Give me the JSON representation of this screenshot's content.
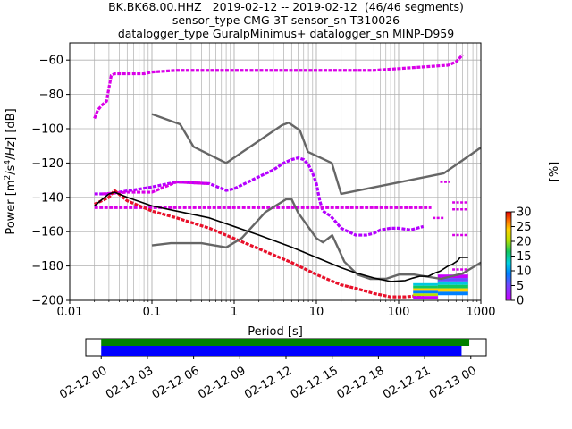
{
  "title_lines": [
    "BK.BK68.00.HHZ   2019-02-12 -- 2019-02-12  (46/46 segments)",
    "sensor_type CMG-3T sensor_sn T310026",
    "datalogger_type GuralpMinimus+ datalogger_sn MINP-D959"
  ],
  "colorbar": {
    "label": "[%]",
    "ticks": [
      "0",
      "5",
      "10",
      "15",
      "20",
      "25",
      "30"
    ],
    "range": [
      0,
      30
    ],
    "colormap": "pqlx"
  },
  "chart_data": [
    {
      "type": "heatmap",
      "name": "ppsd",
      "xlabel": "Period [s]",
      "ylabel": "Power [m²/s⁴/Hz] [dB]",
      "xscale": "log",
      "xlim": [
        0.01,
        1000
      ],
      "ylim": [
        -200,
        -50
      ],
      "xticks": [
        0.01,
        0.1,
        1,
        10,
        100,
        1000
      ],
      "xtick_labels": [
        "0.01",
        "0.1",
        "1",
        "10",
        "100",
        "1000"
      ],
      "yticks": [
        -200,
        -180,
        -160,
        -140,
        -120,
        -100,
        -80,
        -60
      ],
      "ytick_labels": [
        "−200",
        "−180",
        "−160",
        "−140",
        "−120",
        "−100",
        "−80",
        "−60"
      ],
      "grid": true,
      "models": {
        "high_noise": {
          "color": "#666666",
          "points": [
            [
              0.1,
              -91.5
            ],
            [
              0.22,
              -97.4
            ],
            [
              0.32,
              -110.5
            ],
            [
              0.8,
              -120
            ],
            [
              3.8,
              -98
            ],
            [
              4.6,
              -96.5
            ],
            [
              6.3,
              -101
            ],
            [
              7.9,
              -113.5
            ],
            [
              15.4,
              -120
            ],
            [
              20,
              -138
            ],
            [
              354.8,
              -126
            ],
            [
              1000,
              -111
            ]
          ]
        },
        "low_noise": {
          "color": "#666666",
          "points": [
            [
              0.1,
              -168
            ],
            [
              0.17,
              -166.7
            ],
            [
              0.4,
              -166.7
            ],
            [
              0.8,
              -169.2
            ],
            [
              1.24,
              -163.7
            ],
            [
              2.4,
              -148.6
            ],
            [
              4.3,
              -141.1
            ],
            [
              5,
              -141.1
            ],
            [
              6,
              -149
            ],
            [
              10,
              -163.8
            ],
            [
              12,
              -166.2
            ],
            [
              15.6,
              -162.1
            ],
            [
              21.9,
              -177.5
            ],
            [
              31.6,
              -185
            ],
            [
              45,
              -187.5
            ],
            [
              70,
              -187.5
            ],
            [
              101,
              -185
            ],
            [
              154,
              -185
            ],
            [
              328,
              -187.5
            ],
            [
              600,
              -184.4
            ],
            [
              1000,
              -178
            ]
          ]
        },
        "mean": {
          "color": "#000000",
          "points": [
            [
              0.02,
              -145
            ],
            [
              0.025,
              -141
            ],
            [
              0.03,
              -138
            ],
            [
              0.035,
              -137
            ],
            [
              0.05,
              -140
            ],
            [
              0.1,
              -145
            ],
            [
              0.2,
              -148
            ],
            [
              0.5,
              -152
            ],
            [
              1,
              -157
            ],
            [
              2,
              -162
            ],
            [
              5,
              -169
            ],
            [
              10,
              -175
            ],
            [
              20,
              -181
            ],
            [
              30,
              -184
            ],
            [
              50,
              -187
            ],
            [
              80,
              -189
            ],
            [
              120,
              -188.5
            ],
            [
              150,
              -187
            ],
            [
              180,
              -186
            ],
            [
              230,
              -186
            ],
            [
              280,
              -184
            ],
            [
              320,
              -183
            ],
            [
              400,
              -180
            ],
            [
              450,
              -179
            ],
            [
              520,
              -177
            ],
            [
              560,
              -175
            ],
            [
              700,
              -175
            ]
          ]
        }
      },
      "percentile_bands": [
        {
          "name": "upper_band",
          "color": "#d900e8",
          "points": [
            [
              0.02,
              -94
            ],
            [
              0.022,
              -89
            ],
            [
              0.025,
              -86
            ],
            [
              0.028,
              -84
            ],
            [
              0.032,
              -69
            ],
            [
              0.035,
              -68
            ],
            [
              0.05,
              -68
            ],
            [
              0.08,
              -68
            ],
            [
              0.1,
              -67
            ],
            [
              0.2,
              -66
            ],
            [
              1,
              -66
            ],
            [
              10,
              -66
            ],
            [
              50,
              -66
            ],
            [
              100,
              -65
            ],
            [
              200,
              -64
            ],
            [
              400,
              -63
            ],
            [
              500,
              -61
            ],
            [
              600,
              -57
            ]
          ]
        },
        {
          "name": "mid_upper_band",
          "color": "#b400ff",
          "points": [
            [
              0.02,
              -138
            ],
            [
              0.03,
              -138
            ],
            [
              0.04,
              -137
            ],
            [
              0.1,
              -134
            ],
            [
              0.2,
              -131
            ],
            [
              0.5,
              -132
            ],
            [
              0.8,
              -136
            ],
            [
              1,
              -135
            ],
            [
              2,
              -128
            ],
            [
              3,
              -124
            ],
            [
              4,
              -120
            ],
            [
              5,
              -118
            ],
            [
              6,
              -117
            ],
            [
              7,
              -118
            ],
            [
              8,
              -121
            ],
            [
              9,
              -126
            ],
            [
              10,
              -132
            ],
            [
              11,
              -142
            ],
            [
              12,
              -148
            ],
            [
              15,
              -151
            ],
            [
              20,
              -158
            ],
            [
              30,
              -162
            ],
            [
              40,
              -162
            ],
            [
              50,
              -161
            ],
            [
              60,
              -159
            ],
            [
              80,
              -158
            ],
            [
              100,
              -158
            ],
            [
              140,
              -159
            ],
            [
              200,
              -157
            ]
          ]
        },
        {
          "name": "flat_band",
          "color": "#d900e8",
          "points": [
            [
              0.02,
              -146
            ],
            [
              0.05,
              -146
            ],
            [
              0.1,
              -146
            ],
            [
              1,
              -146
            ],
            [
              10,
              -146
            ],
            [
              50,
              -146
            ],
            [
              100,
              -146
            ],
            [
              200,
              -146
            ],
            [
              250,
              -146
            ]
          ]
        },
        {
          "name": "upper_flat_band",
          "color": "#d900e8",
          "points": [
            [
              0.025,
              -138
            ],
            [
              0.05,
              -137
            ],
            [
              0.1,
              -137
            ],
            [
              0.2,
              -131
            ],
            [
              0.5,
              -132
            ]
          ]
        },
        {
          "name": "lower_band",
          "color": "#e8102a",
          "points": [
            [
              0.02,
              -144
            ],
            [
              0.03,
              -140
            ],
            [
              0.035,
              -136
            ],
            [
              0.05,
              -142
            ],
            [
              0.1,
              -148
            ],
            [
              0.2,
              -152
            ],
            [
              0.5,
              -158
            ],
            [
              1,
              -164
            ],
            [
              2,
              -170
            ],
            [
              5,
              -178
            ],
            [
              10,
              -185
            ],
            [
              20,
              -191
            ],
            [
              30,
              -193
            ],
            [
              50,
              -196
            ],
            [
              80,
              -198
            ],
            [
              120,
              -198
            ],
            [
              200,
              -197
            ]
          ]
        }
      ],
      "spectrum_patches": [
        {
          "x": [
            300,
            700
          ],
          "y": [
            -197,
            -185
          ]
        },
        {
          "x": [
            150,
            300
          ],
          "y": [
            -199,
            -190
          ]
        }
      ],
      "right_dashes": [
        {
          "x": [
            260,
            360
          ],
          "y": -152
        },
        {
          "x": [
            450,
            700
          ],
          "y": -147
        },
        {
          "x": [
            450,
            700
          ],
          "y": -143
        },
        {
          "x": [
            450,
            700
          ],
          "y": -162
        },
        {
          "x": [
            450,
            700
          ],
          "y": -182
        },
        {
          "x": [
            320,
            420
          ],
          "y": -131
        }
      ]
    },
    {
      "type": "bar",
      "name": "coverage",
      "xticks": [
        "02-12 00",
        "02-12 03",
        "02-12 06",
        "02-12 09",
        "02-12 12",
        "02-12 15",
        "02-12 18",
        "02-12 21",
        "02-13 00"
      ],
      "xlim_hours": [
        -1.0,
        25.0
      ],
      "series": [
        {
          "color": "#008000",
          "start_hour": 0.0,
          "end_hour": 23.9
        },
        {
          "color": "#0000ff",
          "start_hour": 0.0,
          "end_hour": 23.4
        }
      ]
    }
  ]
}
